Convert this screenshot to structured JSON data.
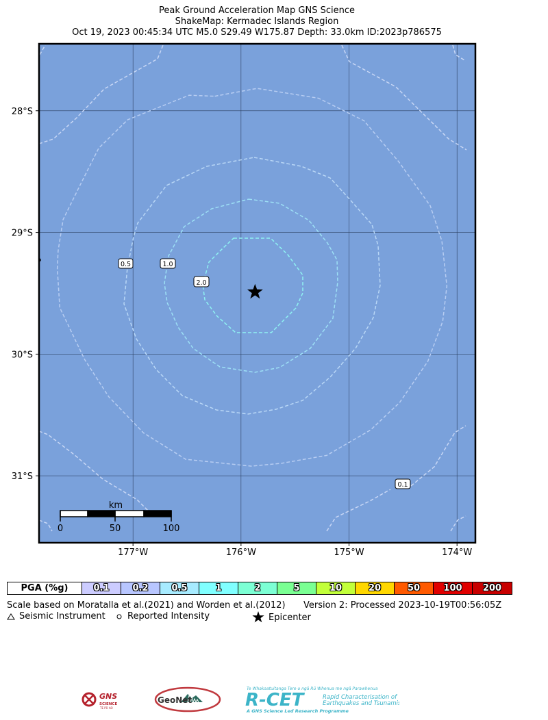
{
  "header": {
    "line1": "Peak Ground Acceleration Map GNS Science",
    "line2": "ShakeMap: Kermadec Islands Region",
    "line3": "Oct 19, 2023 00:45:34 UTC M5.0 S29.49 W175.87 Depth: 33.0km ID:2023p786575"
  },
  "map": {
    "ocean_color": "#7aa1db",
    "extent": {
      "lon_min": -177.87,
      "lon_max": -173.83,
      "lat_min": -31.55,
      "lat_max": -27.45
    },
    "lat_ticks": [
      {
        "value": -28,
        "label": "28°S"
      },
      {
        "value": -29,
        "label": "29°S"
      },
      {
        "value": -30,
        "label": "30°S"
      },
      {
        "value": -31,
        "label": "31°S"
      }
    ],
    "lon_ticks": [
      {
        "value": -177,
        "label": "177°W"
      },
      {
        "value": -176,
        "label": "176°W"
      },
      {
        "value": -175,
        "label": "175°W"
      },
      {
        "value": -174,
        "label": "174°W"
      }
    ],
    "epicenter": {
      "lon": -175.87,
      "lat": -29.49
    },
    "contours": [
      {
        "label": "0.1",
        "color": "#c8d7f5"
      },
      {
        "label": "0.2",
        "color": "#b7cdf2"
      },
      {
        "label": "0.5",
        "color": "#b9d7f6"
      },
      {
        "label": "1.0",
        "color": "#9de0f5"
      },
      {
        "label": "2.0",
        "color": "#8ff2f2"
      }
    ],
    "scale_bar": {
      "unit": "km",
      "labels": [
        "0",
        "50",
        "100"
      ]
    }
  },
  "legend": {
    "header": "PGA (%g)",
    "bins": [
      {
        "label": "0.1",
        "color": "#ccccff"
      },
      {
        "label": "0.2",
        "color": "#b8c6ff"
      },
      {
        "label": "0.5",
        "color": "#a7ebff"
      },
      {
        "label": "1",
        "color": "#80ffff"
      },
      {
        "label": "2",
        "color": "#7cffd4"
      },
      {
        "label": "5",
        "color": "#7aff93"
      },
      {
        "label": "10",
        "color": "#c2ff3a"
      },
      {
        "label": "20",
        "color": "#ffd700"
      },
      {
        "label": "50",
        "color": "#ff5a00"
      },
      {
        "label": "100",
        "color": "#e00000"
      },
      {
        "label": "200",
        "color": "#c80000"
      }
    ]
  },
  "footer": {
    "scale_text": "Scale based on Moratalla et al.(2021) and Worden et al.(2012)",
    "version_text": "Version 2: Processed 2023-10-19T00:56:05Z",
    "seismic_instrument": "Seismic Instrument",
    "reported_intensity": "Reported Intensity",
    "epicenter": "Epicenter"
  },
  "logos": {
    "gns": {
      "main": "GNS",
      "sub": "SCIENCE",
      "sub2": "TE PŪ AO"
    },
    "geonet": "GeoNet",
    "rcet": {
      "top": "Te Whakaatuitanga Tere o ngā Rū Whenua me ngā Parawhenua",
      "main": "R-CET",
      "desc1": "Rapid Characterisation of",
      "desc2": "Earthquakes and Tsunamis",
      "bottom": "A GNS Science Led Research Programme"
    }
  }
}
